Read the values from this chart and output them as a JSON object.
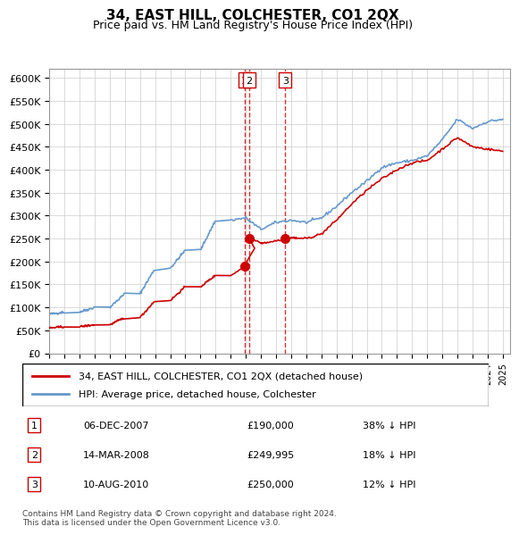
{
  "title": "34, EAST HILL, COLCHESTER, CO1 2QX",
  "subtitle": "Price paid vs. HM Land Registry's House Price Index (HPI)",
  "ylabel_ticks": [
    "£0",
    "£50K",
    "£100K",
    "£150K",
    "£200K",
    "£250K",
    "£300K",
    "£350K",
    "£400K",
    "£450K",
    "£500K",
    "£550K",
    "£600K"
  ],
  "ytick_values": [
    0,
    50000,
    100000,
    150000,
    200000,
    250000,
    300000,
    350000,
    400000,
    450000,
    500000,
    550000,
    600000
  ],
  "ylim": [
    0,
    620000
  ],
  "xlim_start": 1995.0,
  "xlim_end": 2025.5,
  "red_line_color": "#cc0000",
  "blue_line_color": "#6699cc",
  "sale_marker_color": "#cc0000",
  "dashed_line_color": "#cc0000",
  "grid_color": "#cccccc",
  "background_color": "#ffffff",
  "legend_label_red": "34, EAST HILL, COLCHESTER, CO1 2QX (detached house)",
  "legend_label_blue": "HPI: Average price, detached house, Colchester",
  "sales": [
    {
      "num": 1,
      "date": "06-DEC-2007",
      "price": "£190,000",
      "hpi": "38% ↓ HPI",
      "year": 2007.92
    },
    {
      "num": 2,
      "date": "14-MAR-2008",
      "price": "£249,995",
      "hpi": "18% ↓ HPI",
      "year": 2008.21
    },
    {
      "num": 3,
      "date": "10-AUG-2010",
      "price": "£250,000",
      "hpi": "12% ↓ HPI",
      "year": 2010.61
    }
  ],
  "sale_prices": [
    190000,
    249995,
    250000
  ],
  "footer": "Contains HM Land Registry data © Crown copyright and database right 2024.\nThis data is licensed under the Open Government Licence v3.0."
}
